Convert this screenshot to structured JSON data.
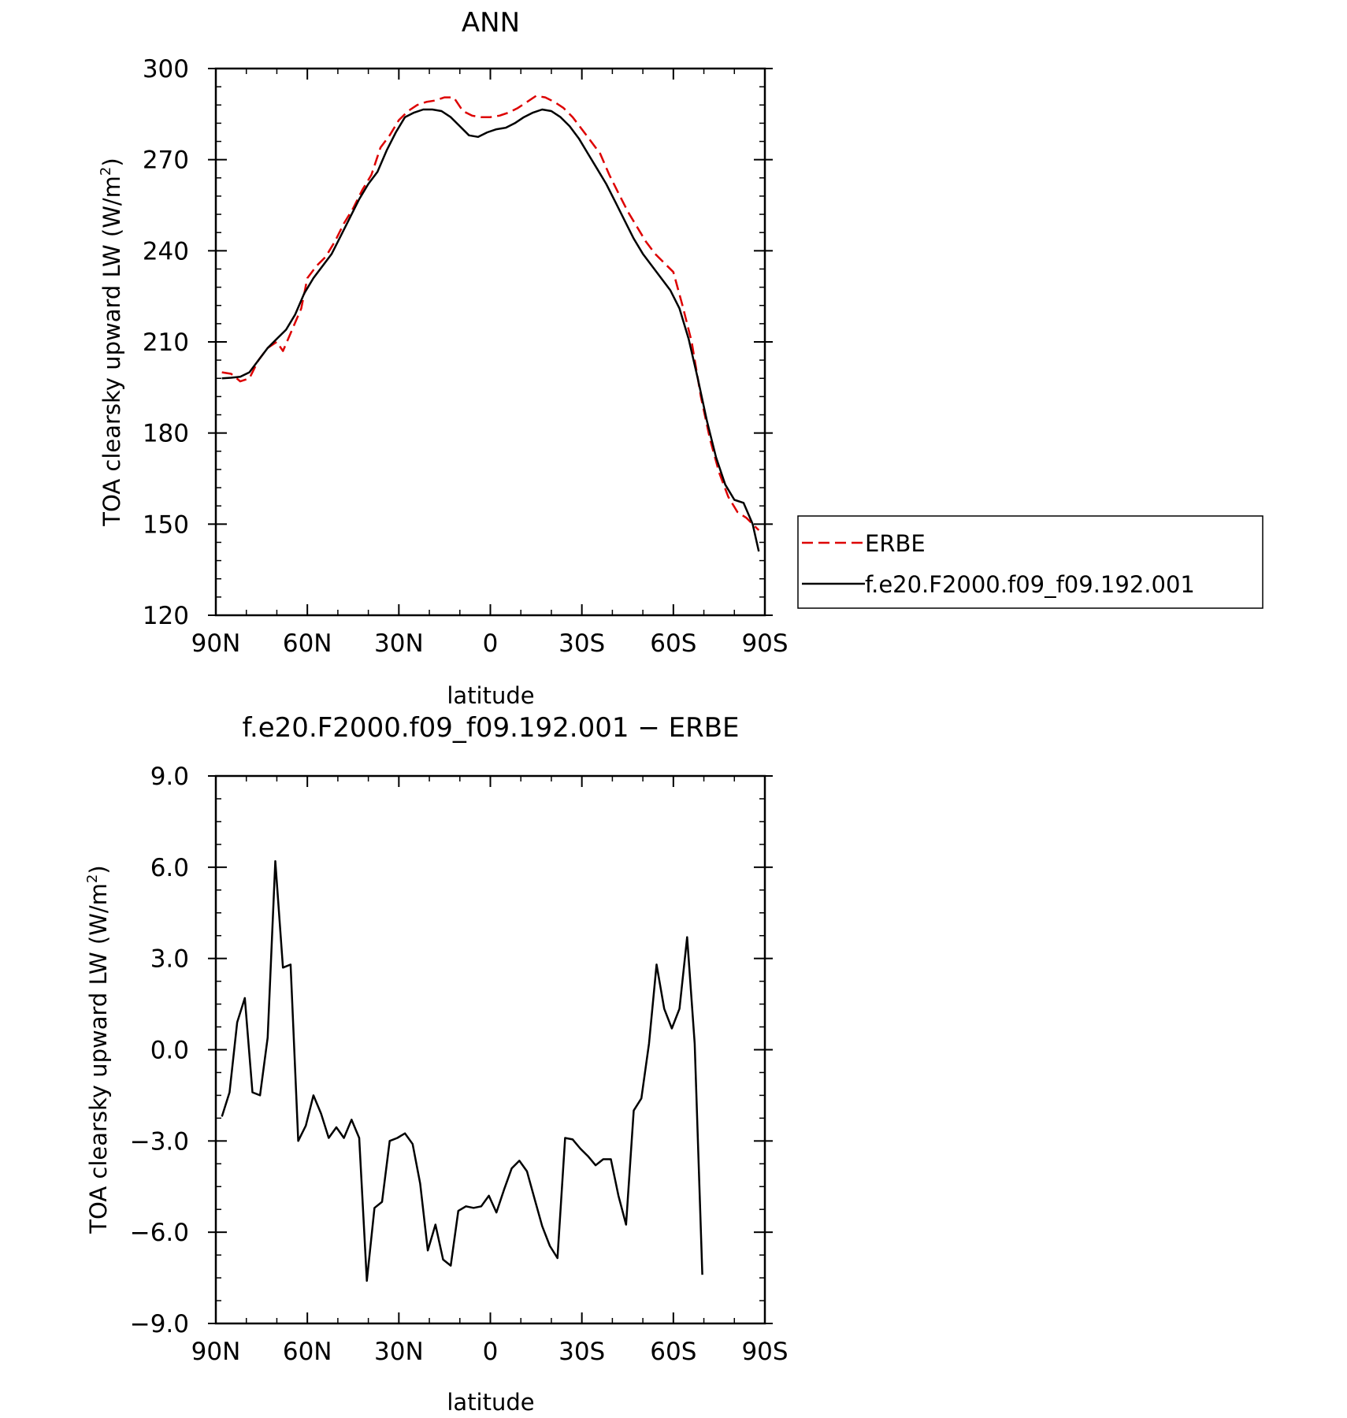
{
  "chart_data": [
    {
      "type": "line",
      "title": "ANN",
      "xlabel": "latitude",
      "ylabel_main": "TOA clearsky upward LW (W/m",
      "ylabel_sup": "2",
      "ylabel_close": ")",
      "xticks": [
        {
          "value": -90,
          "label": "90N"
        },
        {
          "value": -60,
          "label": "60N"
        },
        {
          "value": -30,
          "label": "30N"
        },
        {
          "value": 0,
          "label": "0"
        },
        {
          "value": 30,
          "label": "30S"
        },
        {
          "value": 60,
          "label": "60S"
        },
        {
          "value": 90,
          "label": "90S"
        }
      ],
      "yticks": [
        {
          "value": 120,
          "label": "120"
        },
        {
          "value": 150,
          "label": "150"
        },
        {
          "value": 180,
          "label": "180"
        },
        {
          "value": 210,
          "label": "210"
        },
        {
          "value": 240,
          "label": "240"
        },
        {
          "value": 270,
          "label": "270"
        },
        {
          "value": 300,
          "label": "300"
        }
      ],
      "xlim": [
        -90,
        90
      ],
      "ylim": [
        120,
        300
      ],
      "legend": {
        "placement": "right",
        "entries": [
          {
            "name": "ERBE",
            "color": "#dd0000",
            "dash": "dashed"
          },
          {
            "name": "f.e20.F2000.f09_f09.192.001",
            "color": "#000000",
            "dash": "solid"
          }
        ]
      },
      "series": [
        {
          "name": "ERBE",
          "color": "#dd0000",
          "dash": "dashed",
          "points": [
            [
              -88,
              200
            ],
            [
              -85,
              199.5
            ],
            [
              -82,
              197
            ],
            [
              -79,
              198
            ],
            [
              -76,
              204
            ],
            [
              -73,
              208
            ],
            [
              -70,
              210
            ],
            [
              -68,
              207
            ],
            [
              -65,
              214
            ],
            [
              -62,
              221
            ],
            [
              -60,
              231
            ],
            [
              -57,
              235
            ],
            [
              -54,
              238
            ],
            [
              -51,
              243
            ],
            [
              -48,
              249
            ],
            [
              -45,
              254
            ],
            [
              -42,
              260
            ],
            [
              -39,
              265
            ],
            [
              -36,
              274
            ],
            [
              -33,
              278
            ],
            [
              -30,
              283
            ],
            [
              -27,
              286
            ],
            [
              -24,
              288
            ],
            [
              -21,
              289
            ],
            [
              -18,
              289.5
            ],
            [
              -15,
              290.5
            ],
            [
              -12,
              290.5
            ],
            [
              -9,
              286
            ],
            [
              -6,
              284.5
            ],
            [
              -3,
              284
            ],
            [
              0,
              284
            ],
            [
              3,
              284.5
            ],
            [
              6,
              285.5
            ],
            [
              9,
              287
            ],
            [
              12,
              289
            ],
            [
              15,
              291
            ],
            [
              18,
              290.5
            ],
            [
              21,
              289
            ],
            [
              24,
              287
            ],
            [
              27,
              284
            ],
            [
              30,
              280
            ],
            [
              33,
              276
            ],
            [
              36,
              272
            ],
            [
              39,
              265
            ],
            [
              42,
              259
            ],
            [
              45,
              253
            ],
            [
              48,
              248
            ],
            [
              51,
              243
            ],
            [
              54,
              239
            ],
            [
              57,
              236
            ],
            [
              60,
              233
            ],
            [
              63,
              222
            ],
            [
              66,
              210
            ],
            [
              69,
              192
            ],
            [
              72,
              178
            ],
            [
              75,
              167
            ],
            [
              78,
              159
            ],
            [
              81,
              154
            ],
            [
              84,
              152
            ],
            [
              87,
              149
            ],
            [
              88,
              148
            ]
          ]
        },
        {
          "name": "f.e20.F2000.f09_f09.192.001",
          "color": "#000000",
          "dash": "solid",
          "points": [
            [
              -88,
              198
            ],
            [
              -85,
              198.2
            ],
            [
              -82,
              198.5
            ],
            [
              -79,
              200
            ],
            [
              -76,
              204
            ],
            [
              -73,
              208
            ],
            [
              -70,
              211
            ],
            [
              -67,
              214
            ],
            [
              -64,
              219
            ],
            [
              -61,
              226
            ],
            [
              -58,
              231
            ],
            [
              -55,
              235
            ],
            [
              -52,
              239
            ],
            [
              -49,
              245
            ],
            [
              -46,
              251
            ],
            [
              -43,
              257
            ],
            [
              -40,
              262
            ],
            [
              -37,
              266
            ],
            [
              -34,
              273
            ],
            [
              -31,
              279
            ],
            [
              -28,
              284
            ],
            [
              -25,
              285.5
            ],
            [
              -22,
              286.5
            ],
            [
              -19,
              286.5
            ],
            [
              -16,
              286
            ],
            [
              -13,
              284
            ],
            [
              -10,
              281
            ],
            [
              -7,
              278
            ],
            [
              -4,
              277.5
            ],
            [
              -1,
              279
            ],
            [
              2,
              280
            ],
            [
              5,
              280.5
            ],
            [
              8,
              282
            ],
            [
              11,
              284
            ],
            [
              14,
              285.5
            ],
            [
              17,
              286.5
            ],
            [
              20,
              286
            ],
            [
              23,
              284
            ],
            [
              26,
              281
            ],
            [
              29,
              277
            ],
            [
              32,
              272
            ],
            [
              35,
              267
            ],
            [
              38,
              262
            ],
            [
              41,
              256
            ],
            [
              44,
              250
            ],
            [
              47,
              244
            ],
            [
              50,
              239
            ],
            [
              53,
              235
            ],
            [
              56,
              231
            ],
            [
              59,
              227
            ],
            [
              62,
              221
            ],
            [
              65,
              211
            ],
            [
              68,
              198
            ],
            [
              71,
              184
            ],
            [
              74,
              172
            ],
            [
              77,
              163
            ],
            [
              80,
              158
            ],
            [
              83,
              157
            ],
            [
              86,
              150
            ],
            [
              88,
              141
            ]
          ]
        }
      ]
    },
    {
      "type": "line",
      "title": "f.e20.F2000.f09_f09.192.001 − ERBE",
      "xlabel": "latitude",
      "ylabel_main": "TOA clearsky upward LW (W/m",
      "ylabel_sup": "2",
      "ylabel_close": ")",
      "xticks": [
        {
          "value": -90,
          "label": "90N"
        },
        {
          "value": -60,
          "label": "60N"
        },
        {
          "value": -30,
          "label": "30N"
        },
        {
          "value": 0,
          "label": "0"
        },
        {
          "value": 30,
          "label": "30S"
        },
        {
          "value": 60,
          "label": "60S"
        },
        {
          "value": 90,
          "label": "90S"
        }
      ],
      "yticks": [
        {
          "value": -9,
          "label": "−9.0"
        },
        {
          "value": -6,
          "label": "−6.0"
        },
        {
          "value": -3,
          "label": "−3.0"
        },
        {
          "value": 0,
          "label": "0.0"
        },
        {
          "value": 3,
          "label": "3.0"
        },
        {
          "value": 6,
          "label": "6.0"
        },
        {
          "value": 9,
          "label": "9.0"
        }
      ],
      "xlim": [
        -90,
        90
      ],
      "ylim": [
        -9,
        9
      ],
      "series": [
        {
          "name": "",
          "color": "#000000",
          "dash": "solid",
          "points": [
            [
              -88,
              -2.2
            ],
            [
              -85.5,
              -1.4
            ],
            [
              -83,
              0.9
            ],
            [
              -80.5,
              1.7
            ],
            [
              -78,
              -1.4
            ],
            [
              -75.5,
              -1.5
            ],
            [
              -73,
              0.4
            ],
            [
              -70.5,
              6.2
            ],
            [
              -68,
              2.7
            ],
            [
              -65.5,
              2.8
            ],
            [
              -63,
              -3.0
            ],
            [
              -60.5,
              -2.5
            ],
            [
              -58,
              -1.5
            ],
            [
              -55.5,
              -2.1
            ],
            [
              -53,
              -2.9
            ],
            [
              -50.5,
              -2.55
            ],
            [
              -48,
              -2.9
            ],
            [
              -45.5,
              -2.3
            ],
            [
              -43,
              -2.9
            ],
            [
              -40.5,
              -7.6
            ],
            [
              -38,
              -5.2
            ],
            [
              -35.5,
              -5.0
            ],
            [
              -33,
              -3.0
            ],
            [
              -30.5,
              -2.9
            ],
            [
              -28,
              -2.75
            ],
            [
              -25.5,
              -3.1
            ],
            [
              -23,
              -4.4
            ],
            [
              -20.5,
              -6.6
            ],
            [
              -18,
              -5.75
            ],
            [
              -15.5,
              -6.9
            ],
            [
              -13,
              -7.1
            ],
            [
              -10.5,
              -5.3
            ],
            [
              -8,
              -5.15
            ],
            [
              -5.5,
              -5.2
            ],
            [
              -3,
              -5.15
            ],
            [
              -0.5,
              -4.8
            ],
            [
              2,
              -5.35
            ],
            [
              4.5,
              -4.6
            ],
            [
              7,
              -3.9
            ],
            [
              9.5,
              -3.65
            ],
            [
              12,
              -4.0
            ],
            [
              14.5,
              -4.9
            ],
            [
              17,
              -5.8
            ],
            [
              19.5,
              -6.45
            ],
            [
              22,
              -6.85
            ],
            [
              24.5,
              -2.9
            ],
            [
              27,
              -2.95
            ],
            [
              29.5,
              -3.25
            ],
            [
              32,
              -3.5
            ],
            [
              34.5,
              -3.8
            ],
            [
              37,
              -3.6
            ],
            [
              39.5,
              -3.6
            ],
            [
              42,
              -4.8
            ],
            [
              44.5,
              -5.75
            ],
            [
              47,
              -2.0
            ],
            [
              49.5,
              -1.6
            ],
            [
              52,
              0.2
            ],
            [
              54.5,
              2.8
            ],
            [
              57,
              1.35
            ],
            [
              59.5,
              0.7
            ],
            [
              62,
              1.35
            ],
            [
              64.5,
              3.7
            ],
            [
              67,
              0.2
            ],
            [
              69.5,
              -7.4
            ]
          ]
        }
      ]
    }
  ]
}
